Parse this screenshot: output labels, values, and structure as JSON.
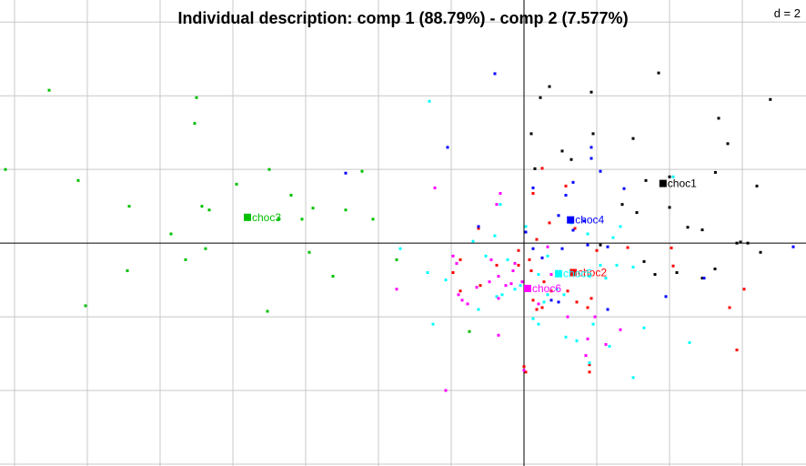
{
  "chart_data": {
    "type": "scatter",
    "title": "Individual description: comp 1 (88.79%) - comp 2 (7.577%)",
    "scale_label": "d = 2",
    "xlabel": "",
    "ylabel": "",
    "xlim": [
      -14.4,
      7.75
    ],
    "ylim": [
      -6.05,
      6.6
    ],
    "grid": true,
    "grid_step": 2,
    "colors": {
      "choc1": "#000000",
      "choc2": "#ff0000",
      "choc3": "#00c000",
      "choc4": "#0000ff",
      "choc5": "#00ffff",
      "choc6": "#ff00ff"
    },
    "groups": [
      {
        "name": "choc1",
        "centroid": [
          3.82,
          1.62
        ],
        "points": [
          [
            3.7,
            4.62
          ],
          [
            0.7,
            4.25
          ],
          [
            1.85,
            4.1
          ],
          [
            0.45,
            3.95
          ],
          [
            6.77,
            3.9
          ],
          [
            5.35,
            3.39
          ],
          [
            0.2,
            2.97
          ],
          [
            1.9,
            2.97
          ],
          [
            5.6,
            2.7
          ],
          [
            1.05,
            2.5
          ],
          [
            3.0,
            2.84
          ],
          [
            1.3,
            2.27
          ],
          [
            5.26,
            1.92
          ],
          [
            0.3,
            2.02
          ],
          [
            4.0,
            1.8
          ],
          [
            3.35,
            1.7
          ],
          [
            6.4,
            1.55
          ],
          [
            2.7,
            1.05
          ],
          [
            4.0,
            0.97
          ],
          [
            3.1,
            0.83
          ],
          [
            4.5,
            0.43
          ],
          [
            4.9,
            0.36
          ],
          [
            5.95,
            0.03
          ],
          [
            5.85,
            0.0
          ],
          [
            6.15,
            0.0
          ],
          [
            6.5,
            -0.25
          ],
          [
            3.3,
            -0.5
          ],
          [
            5.25,
            -0.7
          ],
          [
            2.1,
            -0.05
          ],
          [
            4.2,
            -0.8
          ],
          [
            4.9,
            -0.95
          ],
          [
            3.6,
            -0.85
          ]
        ]
      },
      {
        "name": "choc2",
        "centroid": [
          1.35,
          -0.8
        ],
        "points": [
          [
            0.5,
            2.03
          ],
          [
            1.15,
            1.55
          ],
          [
            0.25,
            1.35
          ],
          [
            0.35,
            0.1
          ],
          [
            0.7,
            0.55
          ],
          [
            1.4,
            0.4
          ],
          [
            2.0,
            -0.2
          ],
          [
            2.85,
            -0.12
          ],
          [
            4.05,
            -0.13
          ],
          [
            4.1,
            -0.62
          ],
          [
            -1.25,
            0.4
          ],
          [
            -1.75,
            -0.45
          ],
          [
            -1.95,
            -0.8
          ],
          [
            -0.75,
            -0.6
          ],
          [
            -0.15,
            -0.2
          ],
          [
            -0.15,
            -0.6
          ],
          [
            0.15,
            -0.45
          ],
          [
            0.2,
            -0.75
          ],
          [
            0.55,
            -1.05
          ],
          [
            0.75,
            -1.3
          ],
          [
            1.2,
            -1.3
          ],
          [
            1.85,
            -1.5
          ],
          [
            1.45,
            -1.6
          ],
          [
            1.75,
            -1.75
          ],
          [
            -1.75,
            -1.3
          ],
          [
            0.5,
            -1.75
          ],
          [
            0.35,
            -1.8
          ],
          [
            0.25,
            -1.55
          ],
          [
            -1.2,
            -1.15
          ],
          [
            6.05,
            -1.25
          ],
          [
            5.65,
            -1.75
          ],
          [
            5.85,
            -2.9
          ],
          [
            0.05,
            -3.5
          ],
          [
            1.8,
            -3.3
          ],
          [
            1.8,
            -3.5
          ],
          [
            0.0,
            -3.35
          ]
        ]
      },
      {
        "name": "choc3",
        "centroid": [
          -7.6,
          0.7
        ],
        "points": [
          [
            -13.05,
            4.15
          ],
          [
            -9.0,
            3.95
          ],
          [
            -14.25,
            2.0
          ],
          [
            -12.25,
            1.7
          ],
          [
            -9.05,
            3.25
          ],
          [
            -7.0,
            2.0
          ],
          [
            -4.45,
            1.95
          ],
          [
            -10.85,
            1.0
          ],
          [
            -8.85,
            1.0
          ],
          [
            -7.9,
            1.6
          ],
          [
            -6.4,
            1.3
          ],
          [
            -8.65,
            0.9
          ],
          [
            -5.8,
            0.95
          ],
          [
            -4.9,
            0.9
          ],
          [
            -6.1,
            0.65
          ],
          [
            -4.15,
            0.65
          ],
          [
            -9.7,
            0.25
          ],
          [
            -6.75,
            0.65
          ],
          [
            -8.75,
            -0.15
          ],
          [
            -5.9,
            -0.25
          ],
          [
            -10.9,
            -0.75
          ],
          [
            -9.3,
            -0.45
          ],
          [
            -7.05,
            -1.85
          ],
          [
            -5.25,
            -0.9
          ],
          [
            -12.05,
            -1.7
          ],
          [
            -3.5,
            -0.45
          ],
          [
            -1.5,
            -2.4
          ]
        ]
      },
      {
        "name": "choc4",
        "centroid": [
          1.28,
          0.63
        ],
        "points": [
          [
            -0.8,
            4.6
          ],
          [
            -2.1,
            2.6
          ],
          [
            -4.9,
            1.9
          ],
          [
            1.85,
            2.6
          ],
          [
            1.85,
            2.3
          ],
          [
            2.1,
            1.95
          ],
          [
            0.25,
            1.5
          ],
          [
            1.15,
            1.3
          ],
          [
            1.35,
            1.65
          ],
          [
            2.75,
            1.48
          ],
          [
            0.95,
            0.75
          ],
          [
            1.65,
            0.6
          ],
          [
            -1.25,
            0.45
          ],
          [
            0.05,
            0.3
          ],
          [
            1.35,
            0.35
          ],
          [
            1.75,
            -0.05
          ],
          [
            0.25,
            -0.15
          ],
          [
            1.05,
            -0.15
          ],
          [
            2.3,
            -0.1
          ],
          [
            0.5,
            -0.4
          ],
          [
            0.95,
            -1.6
          ],
          [
            0.75,
            -1.55
          ],
          [
            2.3,
            -1.8
          ],
          [
            3.9,
            -1.45
          ],
          [
            4.95,
            -0.95
          ],
          [
            7.4,
            -0.1
          ]
        ]
      },
      {
        "name": "choc5",
        "centroid": [
          0.95,
          -0.83
        ],
        "points": [
          [
            -2.6,
            3.85
          ],
          [
            4.1,
            1.8
          ],
          [
            -0.65,
            1.05
          ],
          [
            0.05,
            0.45
          ],
          [
            1.3,
            0.55
          ],
          [
            1.75,
            0.25
          ],
          [
            2.65,
            0.45
          ],
          [
            -0.8,
            0.2
          ],
          [
            -1.4,
            0.05
          ],
          [
            2.45,
            0.15
          ],
          [
            -1.05,
            -0.35
          ],
          [
            -0.45,
            -0.45
          ],
          [
            0.65,
            -0.35
          ],
          [
            2.1,
            -0.6
          ],
          [
            2.55,
            -0.6
          ],
          [
            3.0,
            -0.65
          ],
          [
            -2.65,
            -0.8
          ],
          [
            0.4,
            -0.85
          ],
          [
            1.8,
            -0.9
          ],
          [
            2.25,
            -0.95
          ],
          [
            0.9,
            -1.25
          ],
          [
            -0.25,
            -1.25
          ],
          [
            -0.1,
            -1.15
          ],
          [
            1.1,
            -1.4
          ],
          [
            -2.15,
            -1.0
          ],
          [
            0.65,
            -1.4
          ],
          [
            3.3,
            -2.3
          ],
          [
            -0.6,
            -1.4
          ],
          [
            0.55,
            -1.6
          ],
          [
            1.9,
            -2.2
          ],
          [
            1.15,
            -2.55
          ],
          [
            1.45,
            -2.65
          ],
          [
            2.35,
            -2.8
          ],
          [
            3.0,
            -3.65
          ],
          [
            1.8,
            -3.25
          ],
          [
            4.55,
            -2.7
          ],
          [
            -1.25,
            -1.8
          ],
          [
            0.25,
            -2.05
          ],
          [
            -0.75,
            -1.45
          ],
          [
            0.4,
            -2.2
          ],
          [
            -3.4,
            -0.15
          ],
          [
            -2.5,
            -2.2
          ]
        ]
      },
      {
        "name": "choc6",
        "centroid": [
          0.1,
          -1.23
        ],
        "points": [
          [
            -2.45,
            1.5
          ],
          [
            -0.65,
            1.35
          ],
          [
            -0.75,
            1.05
          ],
          [
            0.65,
            -0.1
          ],
          [
            -0.25,
            -0.55
          ],
          [
            -0.5,
            -1.15
          ],
          [
            -0.3,
            -0.75
          ],
          [
            -0.7,
            -0.9
          ],
          [
            -1.95,
            -0.35
          ],
          [
            -1.85,
            -0.55
          ],
          [
            -0.95,
            -1.05
          ],
          [
            -1.3,
            -1.2
          ],
          [
            -1.8,
            -1.4
          ],
          [
            -1.7,
            -1.55
          ],
          [
            -1.55,
            -1.65
          ],
          [
            0.4,
            -1.65
          ],
          [
            -0.7,
            -2.5
          ],
          [
            1.2,
            -2.0
          ],
          [
            1.95,
            -2.0
          ],
          [
            2.65,
            -2.35
          ],
          [
            -2.15,
            -4.0
          ],
          [
            1.75,
            -2.6
          ],
          [
            2.25,
            -2.75
          ],
          [
            1.7,
            -3.05
          ],
          [
            0.0,
            -3.45
          ],
          [
            -0.7,
            -1.5
          ],
          [
            -3.5,
            -1.25
          ],
          [
            -0.35,
            -1.1
          ],
          [
            -0.05,
            -1.05
          ],
          [
            0.75,
            -0.85
          ],
          [
            -0.9,
            -0.45
          ]
        ]
      }
    ]
  }
}
